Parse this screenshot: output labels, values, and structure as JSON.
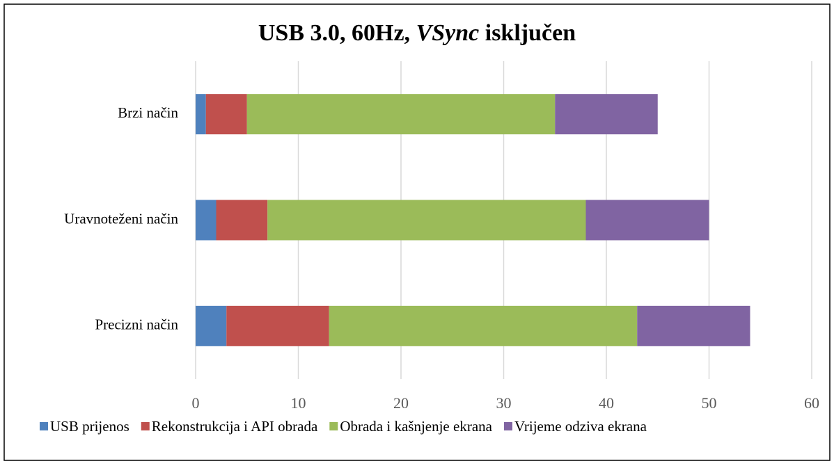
{
  "chart_data": {
    "type": "stacked_barh",
    "title": [
      "USB 3.0, 60Hz, ",
      "VSync",
      " isključen"
    ],
    "title_italic": [
      false,
      true,
      false
    ],
    "categories": [
      "Brzi način",
      "Uravnoteženi način",
      "Precizni način"
    ],
    "series": [
      {
        "name": "USB prijenos",
        "color": "#4f81bd",
        "values": [
          1,
          2,
          3
        ]
      },
      {
        "name": "Rekonstrukcija i API obrada",
        "color": "#c0504d",
        "values": [
          4,
          5,
          10
        ]
      },
      {
        "name": "Obrada i kašnjenje ekrana",
        "color": "#9bbb59",
        "values": [
          30,
          31,
          30
        ]
      },
      {
        "name": "Vrijeme odziva ekrana",
        "color": "#8064a2",
        "values": [
          10,
          12,
          11
        ]
      }
    ],
    "xlim": [
      0,
      60
    ],
    "xticks": [
      0,
      10,
      20,
      30,
      40,
      50,
      60
    ],
    "grid": true,
    "legend": "bottom"
  }
}
